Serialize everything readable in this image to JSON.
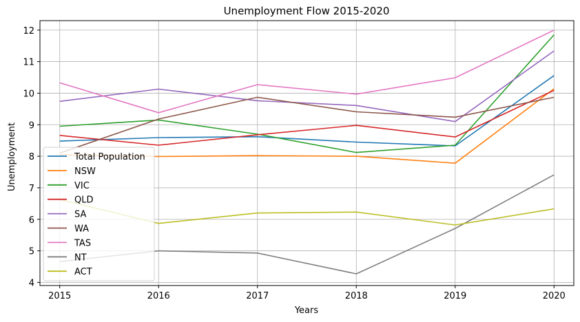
{
  "chart_data": {
    "type": "line",
    "title": "Unemployment Flow 2015-2020",
    "xlabel": "Years",
    "ylabel": "Unemployment",
    "x": [
      2015,
      2016,
      2017,
      2018,
      2019,
      2020
    ],
    "xlim": [
      2014.8,
      2020.2
    ],
    "ylim": [
      3.9,
      12.3
    ],
    "yticks": [
      4,
      5,
      6,
      7,
      8,
      9,
      10,
      11,
      12
    ],
    "grid": true,
    "legend_position": "lower-left",
    "series": [
      {
        "name": "Total Population",
        "color": "#1f77b4",
        "values": [
          8.48,
          8.59,
          8.62,
          8.45,
          8.33,
          10.56
        ]
      },
      {
        "name": "NSW",
        "color": "#ff7f0e",
        "values": [
          8.05,
          7.99,
          8.02,
          8.0,
          7.78,
          10.14
        ]
      },
      {
        "name": "VIC",
        "color": "#2ca02c",
        "values": [
          8.95,
          9.15,
          8.7,
          8.12,
          8.35,
          11.85
        ]
      },
      {
        "name": "QLD",
        "color": "#d62728",
        "values": [
          8.66,
          8.35,
          8.68,
          8.98,
          8.61,
          10.09
        ]
      },
      {
        "name": "SA",
        "color": "#9467bd",
        "values": [
          9.74,
          10.13,
          9.76,
          9.61,
          9.1,
          11.34
        ]
      },
      {
        "name": "WA",
        "color": "#8c564b",
        "values": [
          8.1,
          9.18,
          9.87,
          9.41,
          9.24,
          9.87
        ]
      },
      {
        "name": "TAS",
        "color": "#e377c2",
        "values": [
          10.33,
          9.38,
          10.27,
          9.97,
          10.49,
          12.0
        ]
      },
      {
        "name": "NT",
        "color": "#7f7f7f",
        "values": [
          4.66,
          5.0,
          4.93,
          4.27,
          5.71,
          7.41
        ]
      },
      {
        "name": "ACT",
        "color": "#bcbd22",
        "values": [
          6.63,
          5.87,
          6.2,
          6.23,
          5.82,
          6.33
        ]
      }
    ]
  }
}
